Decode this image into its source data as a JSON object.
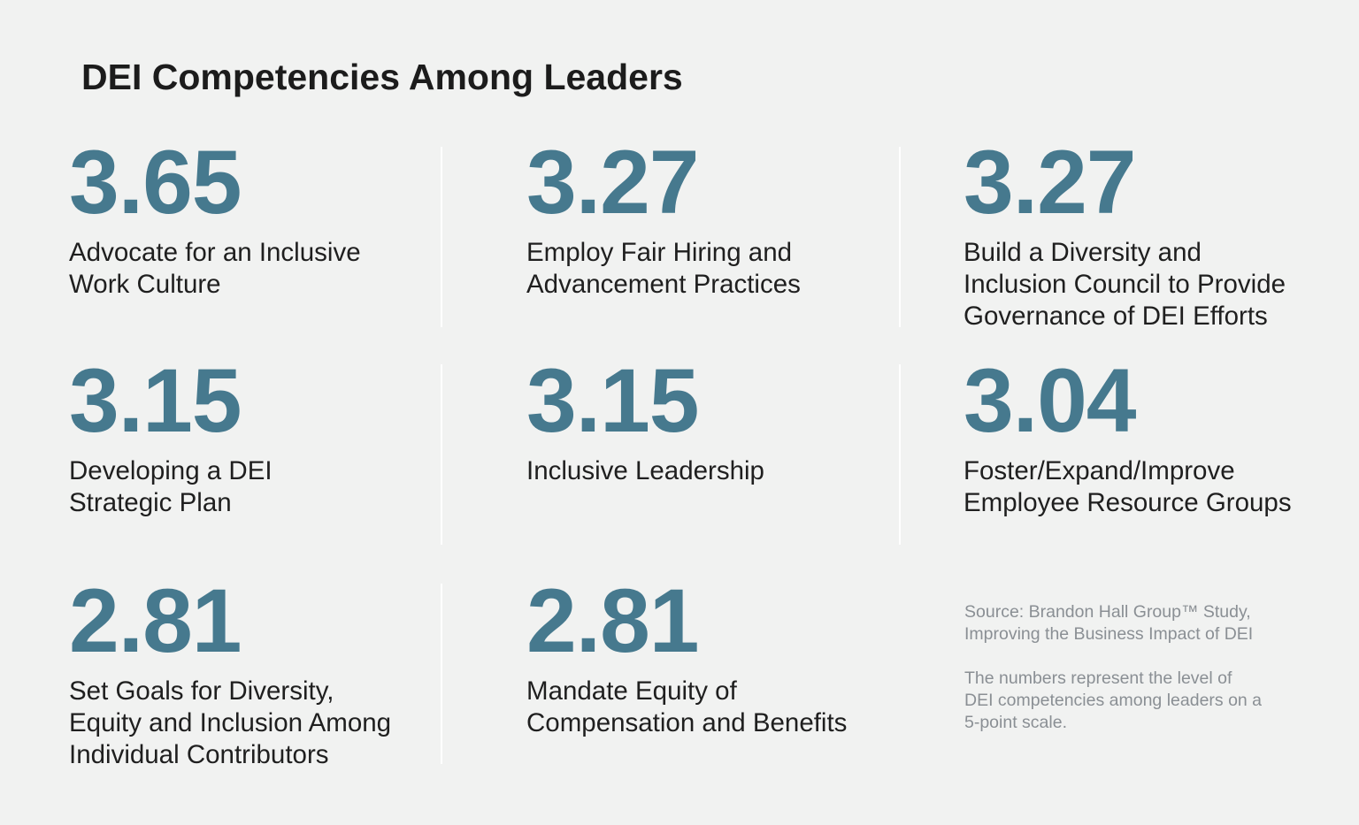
{
  "title": "DEI Competencies Among Leaders",
  "accent_color": "#46798e",
  "chart_data": {
    "type": "table",
    "title": "DEI Competencies Among Leaders",
    "items": [
      {
        "value": 3.65,
        "display": "3.65",
        "label": "Advocate for an Inclusive\nWork Culture"
      },
      {
        "value": 3.27,
        "display": "3.27",
        "label": "Employ Fair Hiring and\nAdvancement Practices"
      },
      {
        "value": 3.27,
        "display": "3.27",
        "label": "Build a Diversity and\nInclusion Council to Provide\nGovernance of DEI Efforts"
      },
      {
        "value": 3.15,
        "display": "3.15",
        "label": "Developing a DEI\nStrategic Plan"
      },
      {
        "value": 3.15,
        "display": "3.15",
        "label": "Inclusive Leadership"
      },
      {
        "value": 3.04,
        "display": "3.04",
        "label": "Foster/Expand/Improve\nEmployee Resource Groups"
      },
      {
        "value": 2.81,
        "display": "2.81",
        "label": "Set Goals for Diversity,\nEquity and Inclusion Among\nIndividual Contributors"
      },
      {
        "value": 2.81,
        "display": "2.81",
        "label": "Mandate Equity of\nCompensation and Benefits"
      }
    ]
  },
  "source": "Source: Brandon Hall Group™ Study,\nImproving the Business Impact of DEI",
  "footnote": "The numbers represent the level of\nDEI competencies among leaders on a\n5-point scale."
}
